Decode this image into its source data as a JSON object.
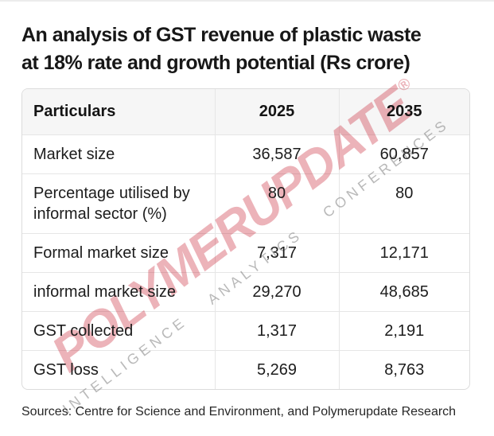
{
  "title": {
    "lines": [
      "An analysis of GST revenue of plastic waste",
      "at 18% rate and growth potential (Rs crore)"
    ]
  },
  "table": {
    "headers": [
      "Particulars",
      "2025",
      "2035"
    ],
    "rows": [
      {
        "label": "Market size",
        "y2025": "36,587",
        "y2035": "60,857"
      },
      {
        "label": "Percentage utilised by informal sector (%)",
        "y2025": "80",
        "y2035": "80"
      },
      {
        "label": "Formal market size",
        "y2025": "7,317",
        "y2035": "12,171"
      },
      {
        "label": "informal market size",
        "y2025": "29,270",
        "y2035": "48,685"
      },
      {
        "label": "GST collected",
        "y2025": "1,317",
        "y2035": "2,191"
      },
      {
        "label": "GST loss",
        "y2025": "5,269",
        "y2035": "8,763"
      }
    ]
  },
  "watermark": {
    "brand": "POLYMERUPDATE",
    "reg_mark": "®",
    "subline": [
      "INTELLIGENCE",
      "ANALYTICS",
      "CONFERENCES"
    ],
    "brand_color": "#c82131",
    "subline_color": "#808080"
  },
  "footer": "Sources: Centre for Science and Environment, and Polymerupdate Research",
  "chart_data": {
    "type": "table",
    "title": "An analysis of GST revenue of plastic waste at 18% rate and growth potential (Rs crore)",
    "columns": [
      "Particulars",
      "2025",
      "2035"
    ],
    "rows": [
      [
        "Market size",
        36587,
        60857
      ],
      [
        "Percentage utilised by informal sector (%)",
        80,
        80
      ],
      [
        "Formal market size",
        7317,
        12171
      ],
      [
        "informal market size",
        29270,
        48685
      ],
      [
        "GST collected",
        1317,
        2191
      ],
      [
        "GST loss",
        5269,
        8763
      ]
    ],
    "source": "Sources: Centre for Science and Environment, and Polymerupdate Research"
  }
}
